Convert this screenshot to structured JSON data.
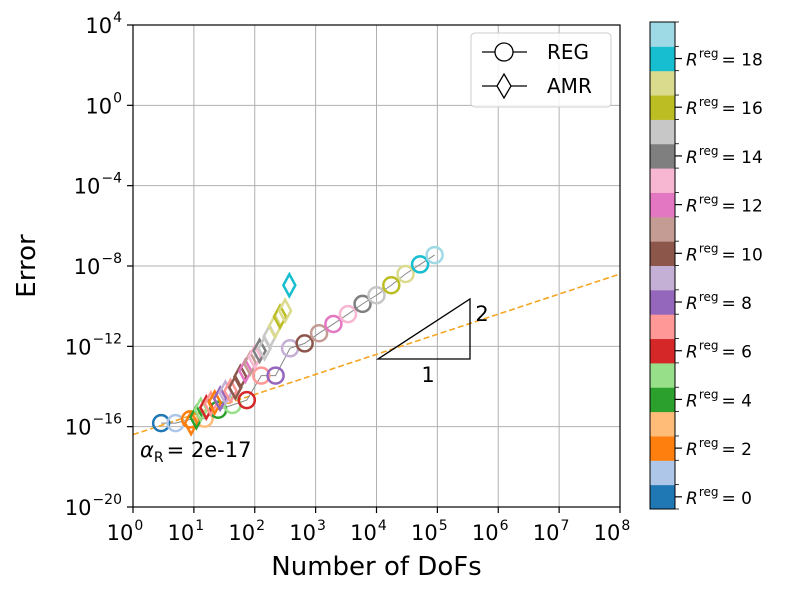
{
  "chart_data": {
    "type": "scatter",
    "xlabel": "Number of DoFs",
    "ylabel": "Error",
    "xscale": "log",
    "yscale": "log",
    "xlim": [
      1,
      100000000
    ],
    "ylim": [
      1e-20,
      10000
    ],
    "x_ticks": [
      {
        "base": "10",
        "exp": "0"
      },
      {
        "base": "10",
        "exp": "1"
      },
      {
        "base": "10",
        "exp": "2"
      },
      {
        "base": "10",
        "exp": "3"
      },
      {
        "base": "10",
        "exp": "4"
      },
      {
        "base": "10",
        "exp": "5"
      },
      {
        "base": "10",
        "exp": "6"
      },
      {
        "base": "10",
        "exp": "7"
      },
      {
        "base": "10",
        "exp": "8"
      }
    ],
    "y_ticks": [
      {
        "base": "10",
        "exp": "4"
      },
      {
        "base": "10",
        "exp": "0"
      },
      {
        "base": "10",
        "exp": "−4"
      },
      {
        "base": "10",
        "exp": "−8"
      },
      {
        "base": "10",
        "exp": "−12"
      },
      {
        "base": "10",
        "exp": "−16"
      },
      {
        "base": "10",
        "exp": "−20"
      }
    ],
    "grid": true,
    "legend": {
      "position": "top-right",
      "entries": [
        {
          "label": "REG",
          "marker": "circle"
        },
        {
          "label": "AMR",
          "marker": "diamond"
        }
      ]
    },
    "reference_line": {
      "style": "dashed",
      "color": "#f5a623",
      "x": [
        1,
        100000000
      ],
      "y": [
        4e-17,
        4e-09
      ],
      "annotation": {
        "alpha_symbol": "α",
        "alpha_sub": "R",
        "text": "= 2e-17"
      }
    },
    "slope_triangle": {
      "run_label": "1",
      "rise_label": "2"
    },
    "series": [
      {
        "name": "REG",
        "marker": "circle",
        "x": [
          2.9,
          5.0,
          8.7,
          15,
          25,
          43,
          74,
          128,
          220,
          380,
          660,
          1140,
          1960,
          3400,
          5900,
          10000,
          17500,
          30000,
          52000,
          90000
        ],
        "y": [
          1.5e-16,
          1.5e-16,
          2.3e-16,
          2.5e-16,
          7e-16,
          1.2e-15,
          2.1e-15,
          3.5e-14,
          3.5e-14,
          8e-13,
          1.4e-12,
          4.5e-12,
          1.3e-11,
          4e-11,
          1.3e-10,
          3.5e-10,
          1.1e-09,
          4e-09,
          1.2e-08,
          3.5e-08
        ],
        "colors": [
          "#1f77b4",
          "#aec7e8",
          "#ff7f0e",
          "#ffbb78",
          "#2ca02c",
          "#98df8a",
          "#d62728",
          "#ff9896",
          "#9467bd",
          "#c5b0d5",
          "#8c564b",
          "#c49c94",
          "#e377c2",
          "#f7b6d2",
          "#7f7f7f",
          "#c7c7c7",
          "#bcbd22",
          "#dbdb8d",
          "#17becf",
          "#9edae5"
        ]
      },
      {
        "name": "AMR",
        "marker": "diamond",
        "x": [
          9,
          11,
          13,
          16,
          19,
          22,
          27,
          33,
          40,
          48,
          58,
          70,
          84,
          100,
          120,
          145,
          175,
          215,
          260,
          315,
          370
        ],
        "y": [
          1.5e-16,
          3e-16,
          7e-16,
          9e-16,
          1.4e-15,
          1.6e-15,
          2.5e-15,
          5e-15,
          6e-15,
          9e-15,
          3e-14,
          6e-14,
          1.4e-13,
          3e-13,
          6e-13,
          8e-13,
          3e-12,
          1e-11,
          3e-11,
          6e-11,
          1.1e-09
        ],
        "colors": [
          "#ff7f0e",
          "#2ca02c",
          "#98df8a",
          "#d62728",
          "#ff9896",
          "#ff7f0e",
          "#9467bd",
          "#c5b0d5",
          "#ff9896",
          "#8c564b",
          "#8c564b",
          "#e377c2",
          "#c49c94",
          "#f7b6d2",
          "#7f7f7f",
          "#c7c7c7",
          "#c7c7c7",
          "#dbdb8d",
          "#bcbd22",
          "#dbdb8d",
          "#17becf"
        ]
      }
    ],
    "colorbar": {
      "colors": [
        "#1f77b4",
        "#aec7e8",
        "#ff7f0e",
        "#ffbb78",
        "#2ca02c",
        "#98df8a",
        "#d62728",
        "#ff9896",
        "#9467bd",
        "#c5b0d5",
        "#8c564b",
        "#c49c94",
        "#e377c2",
        "#f7b6d2",
        "#7f7f7f",
        "#c7c7c7",
        "#bcbd22",
        "#dbdb8d",
        "#17becf",
        "#9edae5"
      ],
      "labels": [
        {
          "sym": "R",
          "sup": "reg",
          "text": "= 0"
        },
        {
          "sym": "R",
          "sup": "reg",
          "text": "= 2"
        },
        {
          "sym": "R",
          "sup": "reg",
          "text": "= 4"
        },
        {
          "sym": "R",
          "sup": "reg",
          "text": "= 6"
        },
        {
          "sym": "R",
          "sup": "reg",
          "text": "= 8"
        },
        {
          "sym": "R",
          "sup": "reg",
          "text": "= 10"
        },
        {
          "sym": "R",
          "sup": "reg",
          "text": "= 12"
        },
        {
          "sym": "R",
          "sup": "reg",
          "text": "= 14"
        },
        {
          "sym": "R",
          "sup": "reg",
          "text": "= 16"
        },
        {
          "sym": "R",
          "sup": "reg",
          "text": "= 18"
        }
      ]
    }
  }
}
